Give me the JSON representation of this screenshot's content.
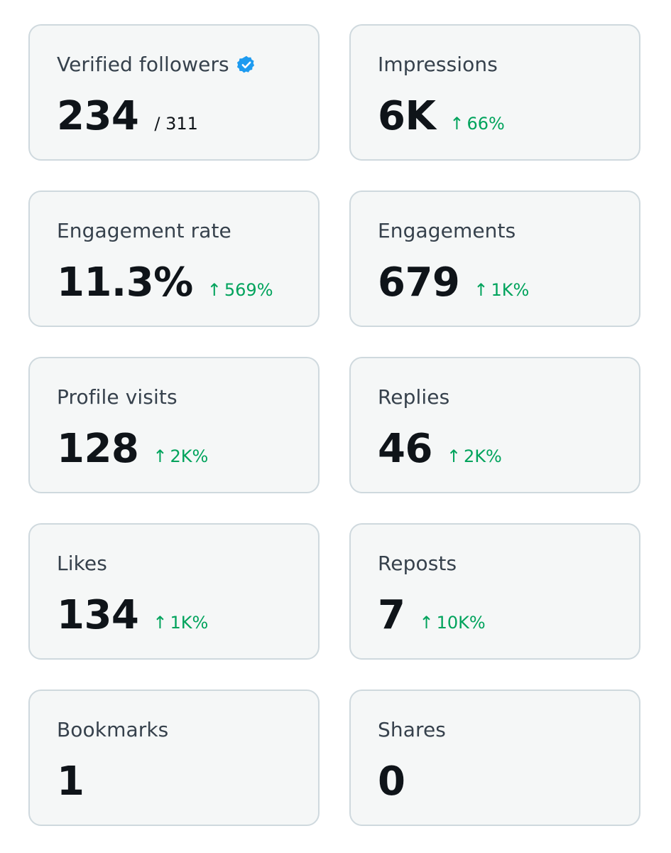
{
  "colors": {
    "positive": "#00a35c",
    "verified": "#1d9bf0"
  },
  "metrics": [
    {
      "label": "Verified followers",
      "value": "234",
      "total": "/ 311",
      "verified_icon": "verified-badge-icon"
    },
    {
      "label": "Impressions",
      "value": "6K",
      "change": "66%"
    },
    {
      "label": "Engagement rate",
      "value": "11.3%",
      "change": "569%"
    },
    {
      "label": "Engagements",
      "value": "679",
      "change": "1K%"
    },
    {
      "label": "Profile visits",
      "value": "128",
      "change": "2K%"
    },
    {
      "label": "Replies",
      "value": "46",
      "change": "2K%"
    },
    {
      "label": "Likes",
      "value": "134",
      "change": "1K%"
    },
    {
      "label": "Reposts",
      "value": "7",
      "change": "10K%"
    },
    {
      "label": "Bookmarks",
      "value": "1"
    },
    {
      "label": "Shares",
      "value": "0"
    }
  ]
}
